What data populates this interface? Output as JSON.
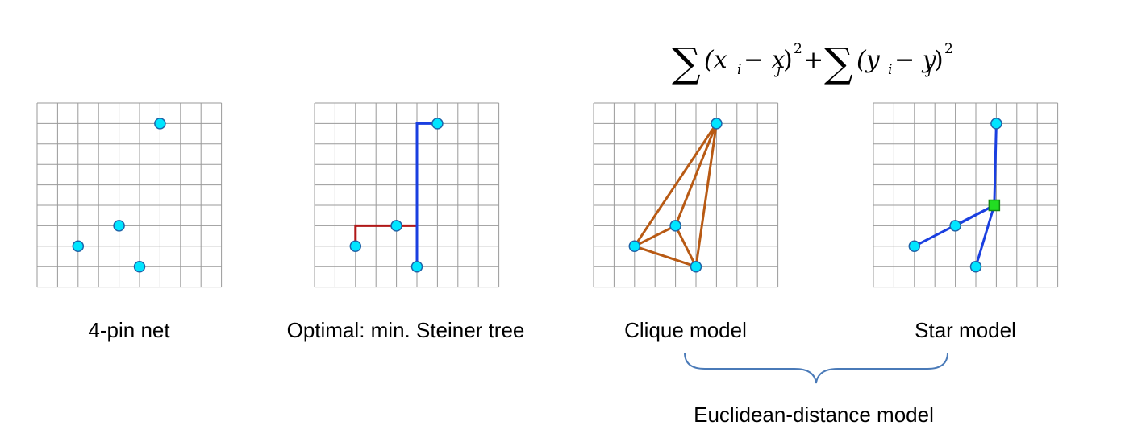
{
  "formula": {
    "sum1": "∑",
    "term1": "(x",
    "sub_i1": "i",
    "minus1": " − x",
    "sub_j1": "j",
    "close1": ")",
    "sup1": "2",
    "plus": "+",
    "sum2": "∑",
    "term2": "(y",
    "sub_i2": "i",
    "minus2": " − y",
    "sub_j2": "j",
    "close2": ")",
    "sup2": "2"
  },
  "panels": [
    {
      "caption": "4-pin net",
      "model": "pins-only"
    },
    {
      "caption": "Optimal: min. Steiner tree",
      "model": "steiner"
    },
    {
      "caption": "Clique model",
      "model": "clique"
    },
    {
      "caption": "Star model",
      "model": "star"
    }
  ],
  "grid": {
    "cells": 9
  },
  "pins": [
    {
      "col": 6,
      "row": 1
    },
    {
      "col": 4,
      "row": 6
    },
    {
      "col": 2,
      "row": 7
    },
    {
      "col": 5,
      "row": 8
    }
  ],
  "star_center": {
    "col": 5.9,
    "row": 5
  },
  "bracket_label": "Euclidean-distance model",
  "colors": {
    "pin_fill": "#00e5ff",
    "pin_stroke": "#1e63a8",
    "grid": "#9a9a9a",
    "steiner_horizontal": "#b01818",
    "steiner_vertical": "#1a3fe0",
    "clique": "#b85a14",
    "star": "#1a3fe0",
    "star_hub": "#22dd22",
    "bracket": "#4a7ab8"
  }
}
